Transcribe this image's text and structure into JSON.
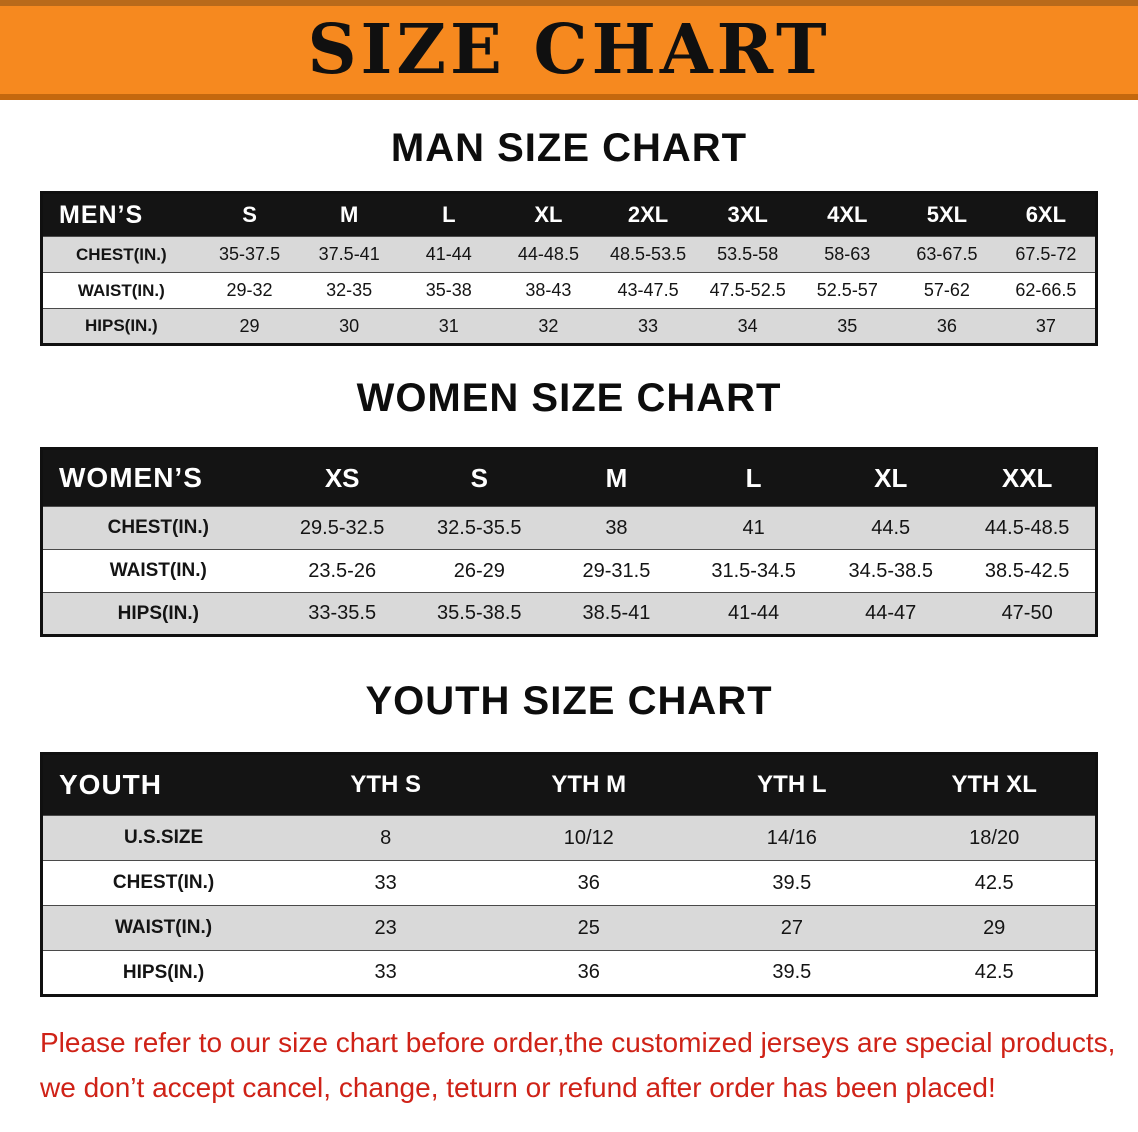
{
  "banner": {
    "title": "SIZE CHART"
  },
  "colors": {
    "banner_bg": "#f6891f",
    "table_header_bg": "#141414",
    "row_alt_bg": "#d9d9d9",
    "footer_text": "#cf2217"
  },
  "sections": [
    {
      "id": "men",
      "heading": "MAN SIZE CHART",
      "table": {
        "name": "mens-size-table",
        "header": [
          "MEN’S",
          "S",
          "M",
          "L",
          "XL",
          "2XL",
          "3XL",
          "4XL",
          "5XL",
          "6XL"
        ],
        "rows": [
          {
            "label": "CHEST(IN.)",
            "values": [
              "35-37.5",
              "37.5-41",
              "41-44",
              "44-48.5",
              "48.5-53.5",
              "53.5-58",
              "58-63",
              "63-67.5",
              "67.5-72"
            ]
          },
          {
            "label": "WAIST(IN.)",
            "values": [
              "29-32",
              "32-35",
              "35-38",
              "38-43",
              "43-47.5",
              "47.5-52.5",
              "52.5-57",
              "57-62",
              "62-66.5"
            ]
          },
          {
            "label": "HIPS(IN.)",
            "values": [
              "29",
              "30",
              "31",
              "32",
              "33",
              "34",
              "35",
              "36",
              "37"
            ]
          }
        ]
      }
    },
    {
      "id": "women",
      "heading": "WOMEN SIZE CHART",
      "table": {
        "name": "womens-size-table",
        "header": [
          "WOMEN’S",
          "XS",
          "S",
          "M",
          "L",
          "XL",
          "XXL"
        ],
        "rows": [
          {
            "label": "CHEST(IN.)",
            "values": [
              "29.5-32.5",
              "32.5-35.5",
              "38",
              "41",
              "44.5",
              "44.5-48.5"
            ]
          },
          {
            "label": "WAIST(IN.)",
            "values": [
              "23.5-26",
              "26-29",
              "29-31.5",
              "31.5-34.5",
              "34.5-38.5",
              "38.5-42.5"
            ]
          },
          {
            "label": "HIPS(IN.)",
            "values": [
              "33-35.5",
              "35.5-38.5",
              "38.5-41",
              "41-44",
              "44-47",
              "47-50"
            ]
          }
        ]
      }
    },
    {
      "id": "youth",
      "heading": "YOUTH SIZE CHART",
      "table": {
        "name": "youth-size-table",
        "header": [
          "YOUTH",
          "YTH S",
          "YTH M",
          "YTH L",
          "YTH XL"
        ],
        "rows": [
          {
            "label": "U.S.SIZE",
            "values": [
              "8",
              "10/12",
              "14/16",
              "18/20"
            ]
          },
          {
            "label": "CHEST(IN.)",
            "values": [
              "33",
              "36",
              "39.5",
              "42.5"
            ]
          },
          {
            "label": "WAIST(IN.)",
            "values": [
              "23",
              "25",
              "27",
              "29"
            ]
          },
          {
            "label": "HIPS(IN.)",
            "values": [
              "33",
              "36",
              "39.5",
              "42.5"
            ]
          }
        ]
      }
    }
  ],
  "footer": {
    "line1": "Please refer to our size chart before order,the customized jerseys are special products,",
    "line2": "we don’t accept cancel, change, teturn or refund after order has been placed!"
  }
}
